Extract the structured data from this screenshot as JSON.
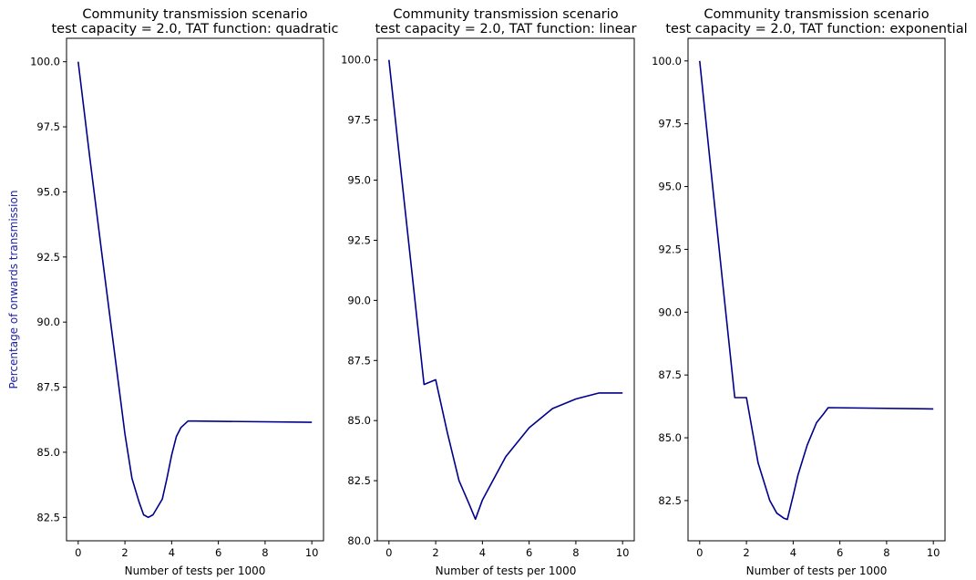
{
  "style": {
    "line_color": "#00008b",
    "ylabel_color": "#1f1fa8",
    "axes_color": "#000000"
  },
  "chart_data": [
    {
      "type": "line",
      "title": "Community transmission scenario",
      "subtitle": "test capacity = 2.0, TAT function: quadratic",
      "xlabel": "Number of tests per 1000",
      "ylabel": "Percentage of onwards transmission",
      "xlim": [
        -0.5,
        10.5
      ],
      "ylim": [
        81.6,
        100.9
      ],
      "xticks": [
        0,
        2,
        4,
        6,
        8,
        10
      ],
      "yticks": [
        82.5,
        85.0,
        87.5,
        90.0,
        92.5,
        95.0,
        97.5,
        100.0
      ],
      "grid": false,
      "series": [
        {
          "x": [
            0,
            0.5,
            1,
            1.5,
            2,
            2.3,
            2.6,
            2.8,
            3.0,
            3.2,
            3.4,
            3.6,
            3.8,
            4.0,
            4.2,
            4.4,
            4.7,
            5.0,
            10
          ],
          "y": [
            100.0,
            96.3,
            92.7,
            89.2,
            85.7,
            84.0,
            83.1,
            82.6,
            82.5,
            82.6,
            82.9,
            83.2,
            84.0,
            84.9,
            85.6,
            85.95,
            86.2,
            86.2,
            86.15
          ]
        }
      ]
    },
    {
      "type": "line",
      "title": "Community transmission scenario",
      "subtitle": "test capacity = 2.0, TAT function: linear",
      "xlabel": "Number of tests per 1000",
      "ylabel": "",
      "xlim": [
        -0.5,
        10.5
      ],
      "ylim": [
        80.0,
        100.9
      ],
      "xticks": [
        0,
        2,
        4,
        6,
        8,
        10
      ],
      "yticks": [
        80.0,
        82.5,
        85.0,
        87.5,
        90.0,
        92.5,
        95.0,
        97.5,
        100.0
      ],
      "grid": false,
      "series": [
        {
          "x": [
            0,
            0.5,
            1,
            1.5,
            2,
            2.5,
            3,
            3.4,
            3.7,
            4,
            5,
            6,
            7,
            8,
            9,
            10
          ],
          "y": [
            100.0,
            95.5,
            91.0,
            86.5,
            86.7,
            84.5,
            82.5,
            81.6,
            80.9,
            81.7,
            83.5,
            84.7,
            85.5,
            85.9,
            86.15,
            86.15
          ]
        }
      ]
    },
    {
      "type": "line",
      "title": "Community transmission scenario",
      "subtitle": "test capacity = 2.0, TAT function: exponential",
      "xlabel": "Number of tests per 1000",
      "ylabel": "",
      "xlim": [
        -0.5,
        10.5
      ],
      "ylim": [
        80.9,
        100.9
      ],
      "xticks": [
        0,
        2,
        4,
        6,
        8,
        10
      ],
      "yticks": [
        82.5,
        85.0,
        87.5,
        90.0,
        92.5,
        95.0,
        97.5,
        100.0
      ],
      "grid": false,
      "series": [
        {
          "x": [
            0,
            0.5,
            1,
            1.5,
            2,
            2.5,
            3,
            3.3,
            3.6,
            3.75,
            4,
            4.2,
            4.6,
            5.0,
            5.3,
            5.5,
            10
          ],
          "y": [
            100.0,
            95.5,
            91.0,
            86.6,
            86.6,
            84.0,
            82.5,
            82.0,
            81.8,
            81.75,
            82.7,
            83.5,
            84.7,
            85.6,
            85.95,
            86.2,
            86.15
          ]
        }
      ]
    }
  ]
}
